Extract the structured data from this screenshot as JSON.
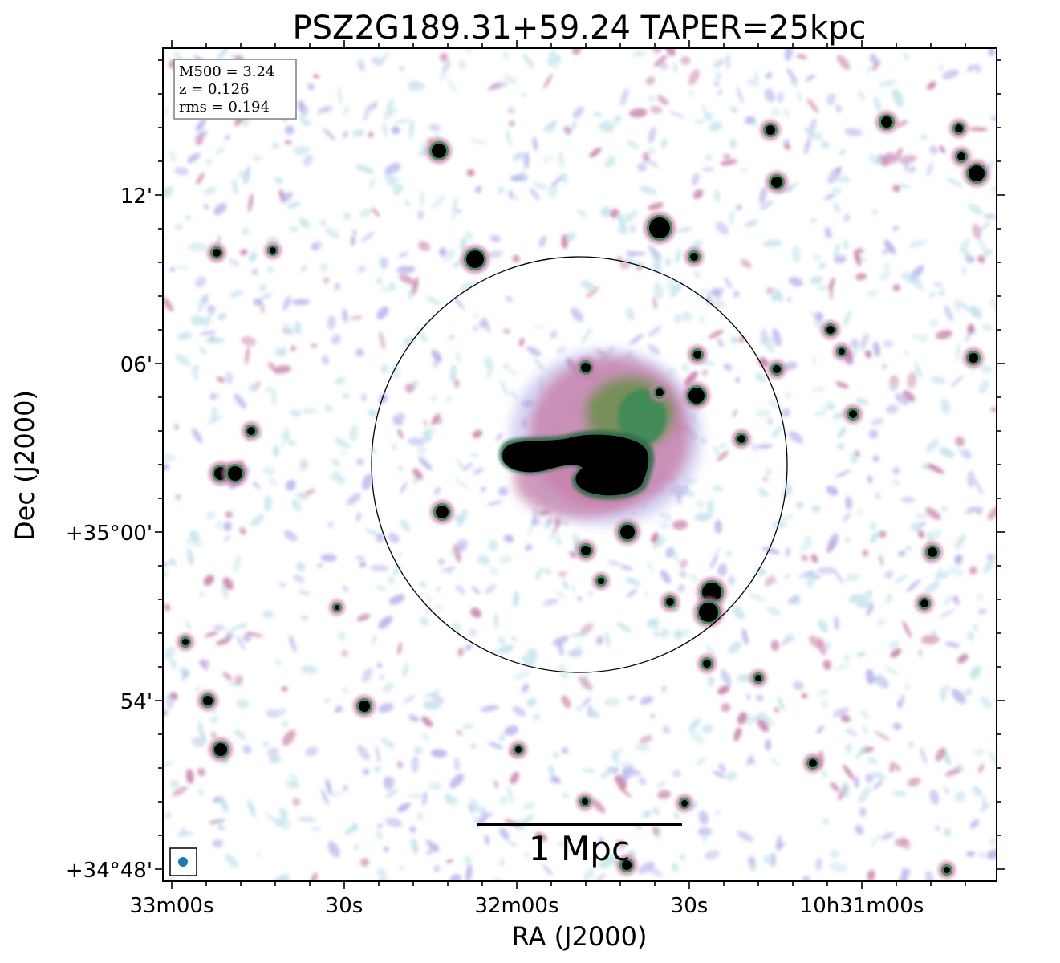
{
  "title": "PSZ2G189.31+59.24 TAPER=25kpc",
  "xlabel": "RA (J2000)",
  "ylabel": "Dec (J2000)",
  "x_ticks": [
    "33m00s",
    "30s",
    "32m00s",
    "30s",
    "10h31m00s"
  ],
  "y_ticks": [
    "+34°48'",
    "54'",
    "+35°00'",
    "06'",
    "12'"
  ],
  "info": {
    "m500": "M500 = 3.24",
    "z": "z = 0.126",
    "rms": "rms = 0.194"
  },
  "scalebar_label": "1 Mpc",
  "colors": {
    "frame": "#000000",
    "noise_light": "#c4e4ec",
    "noise_lavender": "#b7b4ec",
    "emission_pink": "#c77fa9",
    "emission_green": "#3e8a58",
    "source_core": "#000000",
    "beam": "#1f77b4"
  },
  "legend": {
    "beam_marker": "beam-ellipse"
  }
}
